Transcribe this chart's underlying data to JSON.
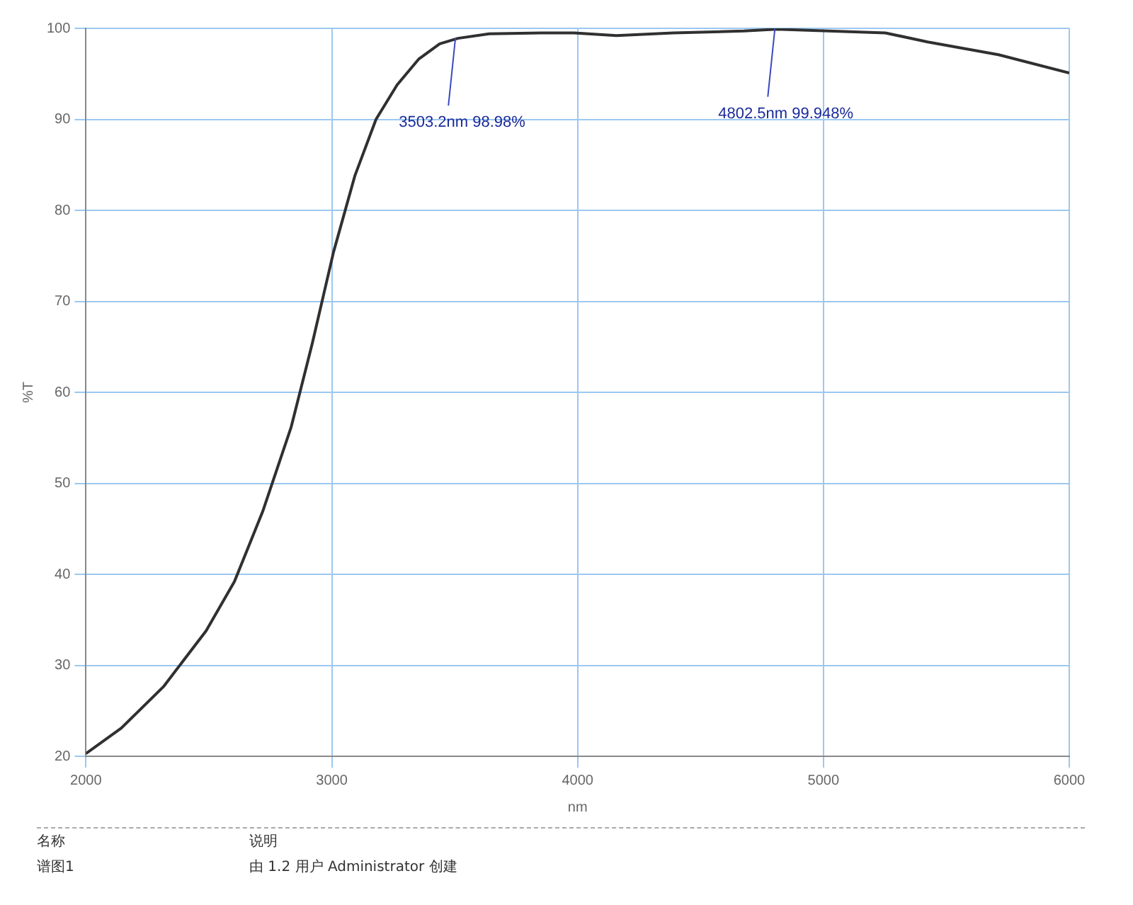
{
  "chart_data": {
    "type": "line",
    "xlabel": "nm",
    "ylabel": "%T",
    "x": [
      2000,
      2144,
      2317,
      2489,
      2604,
      2719,
      2835,
      2921,
      3007,
      3094,
      3180,
      3266,
      3353,
      3439,
      3513,
      3640,
      3870,
      3986,
      4158,
      4388,
      4676,
      4809,
      5022,
      5252,
      5424,
      5712,
      6000
    ],
    "series": [
      {
        "color": "#303030",
        "values": [
          20.3,
          23.1,
          27.7,
          33.8,
          39.2,
          46.9,
          56.2,
          65.4,
          75.4,
          83.8,
          90,
          93.8,
          96.6,
          98.3,
          98.9,
          99.4,
          99.5,
          99.5,
          99.2,
          99.5,
          99.7,
          99.9,
          99.7,
          99.5,
          98.5,
          97.1,
          95.1
        ]
      }
    ],
    "xlim": [
      2000,
      6000
    ],
    "xticks": [
      2000,
      3000,
      4000,
      5000,
      6000
    ],
    "ylim": [
      20,
      100
    ],
    "yticks": [
      20,
      30,
      40,
      50,
      60,
      70,
      80,
      90,
      100
    ],
    "grid": true,
    "legend": false,
    "marker": "none",
    "line_style": "solid",
    "annotations": [
      {
        "text": "3503.2nm 98.98%",
        "x": 3503.2,
        "y": 98.98
      },
      {
        "text": "4802.5nm 99.948%",
        "x": 4802.5,
        "y": 99.948
      },
      "名称",
      "说明",
      "谱图1",
      "由 1.2 用户 Administrator 创建"
    ]
  }
}
